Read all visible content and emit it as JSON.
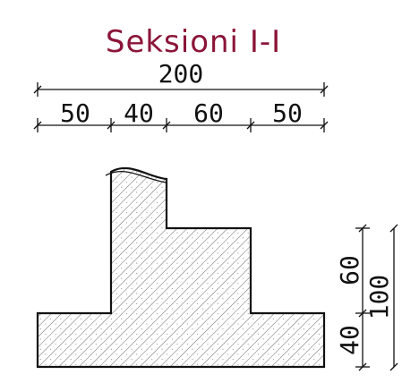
{
  "title": "Seksioni I-I",
  "colors": {
    "title": "#8b1538",
    "lines": "#111111",
    "hatch": "#444444"
  },
  "dimensions": {
    "total_width": "200",
    "segments": [
      "50",
      "40",
      "60",
      "50"
    ],
    "vertical": {
      "upper": "60",
      "lower": "40",
      "total": "100"
    }
  }
}
